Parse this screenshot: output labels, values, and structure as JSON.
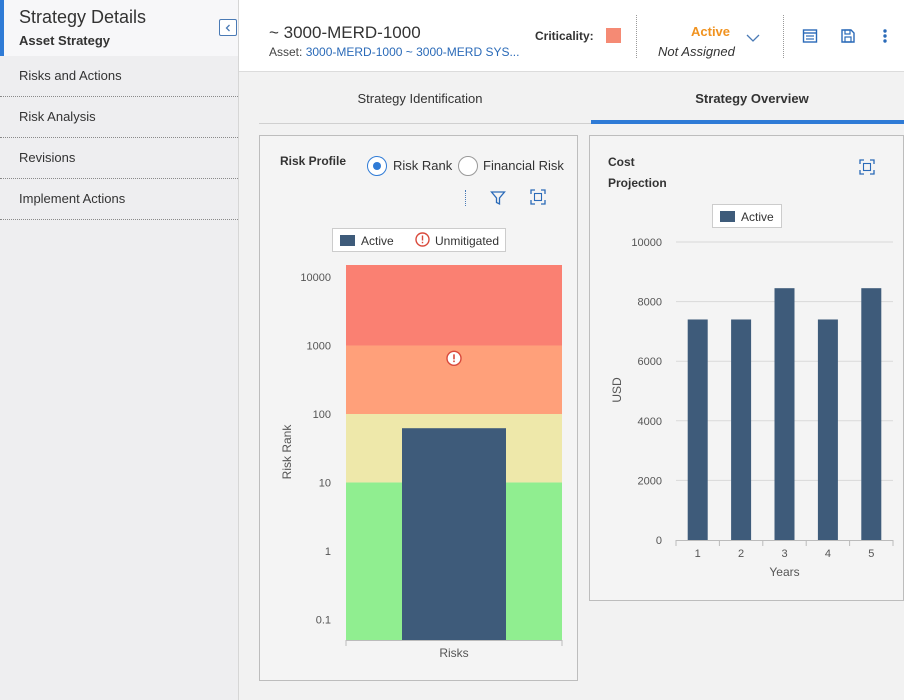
{
  "sidebar": {
    "title": "Strategy Details",
    "subtitle": "Asset Strategy",
    "items": [
      {
        "label": "Risks and Actions"
      },
      {
        "label": "Risk Analysis"
      },
      {
        "label": "Revisions"
      },
      {
        "label": "Implement Actions"
      }
    ]
  },
  "header": {
    "title": "~ 3000-MERD-1000",
    "asset_label": "Asset:",
    "asset_link": "3000-MERD-1000 ~ 3000-MERD SYS...",
    "criticality_label": "Criticality:",
    "criticality_color": "#f58a74",
    "state": "Active",
    "assignment": "Not Assigned"
  },
  "tabs": [
    {
      "label": "Strategy Identification",
      "active": false
    },
    {
      "label": "Strategy Overview",
      "active": true
    }
  ],
  "risk_profile": {
    "title": "Risk Profile",
    "options": [
      {
        "label": "Risk Rank",
        "checked": true
      },
      {
        "label": "Financial Risk",
        "checked": false
      }
    ],
    "legend": {
      "active": "Active",
      "unmitigated": "Unmitigated"
    },
    "chart_data": {
      "type": "bar",
      "title": "",
      "ylabel": "Risk Rank",
      "xlabel": "Risks",
      "yscale": "log",
      "yticks": [
        "0.1",
        "1",
        "10",
        "100",
        "1000",
        "10000"
      ],
      "ylim": [
        0.05,
        15000
      ],
      "bands": [
        {
          "from": 0.05,
          "to": 10,
          "color": "#90ee90"
        },
        {
          "from": 10,
          "to": 100,
          "color": "#eee8aa"
        },
        {
          "from": 100,
          "to": 1000,
          "color": "#ffa07a"
        },
        {
          "from": 1000,
          "to": 15000,
          "color": "#fa8072"
        }
      ],
      "series": [
        {
          "name": "Active",
          "values": [
            62
          ],
          "color": "#3e5b7a"
        },
        {
          "name": "Unmitigated",
          "values": [
            650
          ],
          "marker": "exclamation-circle"
        }
      ],
      "categories": [
        "Risks"
      ]
    }
  },
  "cost_projection": {
    "title": "Cost Projection",
    "legend": "Active",
    "chart_data": {
      "type": "bar",
      "title": "",
      "ylabel": "USD",
      "xlabel": "Years",
      "categories": [
        "1",
        "2",
        "3",
        "4",
        "5"
      ],
      "ylim": [
        0,
        10000
      ],
      "yticks": [
        "0",
        "2000",
        "4000",
        "6000",
        "8000",
        "10000"
      ],
      "series": [
        {
          "name": "Active",
          "values": [
            7400,
            7400,
            8450,
            7400,
            8450
          ],
          "color": "#3e5b7a"
        }
      ]
    }
  }
}
